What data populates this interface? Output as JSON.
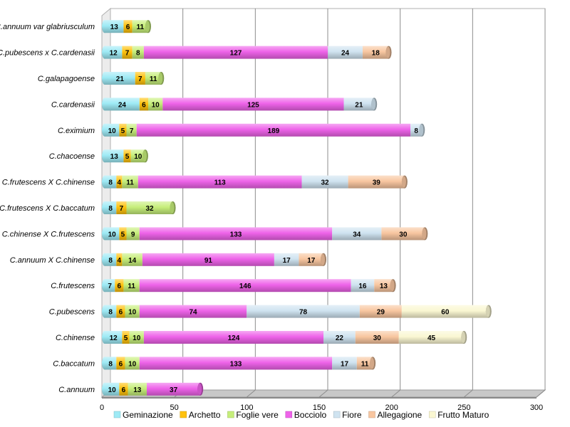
{
  "chart_data": {
    "type": "bar",
    "orientation": "horizontal",
    "stacked": true,
    "style": "3d-cylinder",
    "categories": [
      "C.annuum var glabriusculum",
      "C.pubescens x C.cardenasii",
      "C.galapagoense",
      "C.cardenasii",
      "C.eximium",
      "C.chacoense",
      "C.frutescens X C.chinense",
      "C.frutescens X C.baccatum",
      "C.chinense X C.frutescens",
      "C.annuum X C.chinense",
      "C.frutescens",
      "C.pubescens",
      "C.chinense",
      "C.baccatum",
      "C.annuum"
    ],
    "series": [
      {
        "name": "Geminazione",
        "color": "#9EEAF5",
        "values": [
          13,
          12,
          21,
          24,
          10,
          13,
          8,
          8,
          10,
          8,
          7,
          8,
          12,
          8,
          10
        ]
      },
      {
        "name": "Archetto",
        "color": "#FFC20E",
        "values": [
          6,
          7,
          7,
          6,
          5,
          5,
          4,
          7,
          5,
          4,
          6,
          6,
          5,
          6,
          6
        ]
      },
      {
        "name": "Foglie vere",
        "color": "#C6EE7A",
        "values": [
          11,
          8,
          11,
          10,
          7,
          10,
          11,
          32,
          9,
          14,
          11,
          10,
          10,
          10,
          13
        ]
      },
      {
        "name": "Bocciolo",
        "color": "#EE63E9",
        "values": [
          0,
          127,
          0,
          125,
          189,
          0,
          113,
          0,
          133,
          91,
          146,
          74,
          124,
          133,
          37
        ]
      },
      {
        "name": "Fiore",
        "color": "#CFE3F0",
        "values": [
          0,
          24,
          0,
          21,
          8,
          0,
          32,
          0,
          34,
          17,
          16,
          78,
          22,
          17,
          0
        ]
      },
      {
        "name": "Allegagione",
        "color": "#F8C6A0",
        "values": [
          0,
          18,
          0,
          0,
          0,
          0,
          39,
          0,
          30,
          17,
          13,
          29,
          30,
          11,
          0
        ]
      },
      {
        "name": "Frutto Maturo",
        "color": "#FAF7D2",
        "values": [
          0,
          0,
          0,
          0,
          0,
          0,
          0,
          0,
          0,
          0,
          0,
          60,
          45,
          0,
          0
        ]
      }
    ],
    "xticks": [
      "0",
      "50",
      "100",
      "150",
      "200",
      "250",
      "300"
    ],
    "xlim": [
      0,
      300
    ],
    "grid": true,
    "legend_position": "bottom",
    "title": "",
    "xlabel": "",
    "ylabel": ""
  }
}
